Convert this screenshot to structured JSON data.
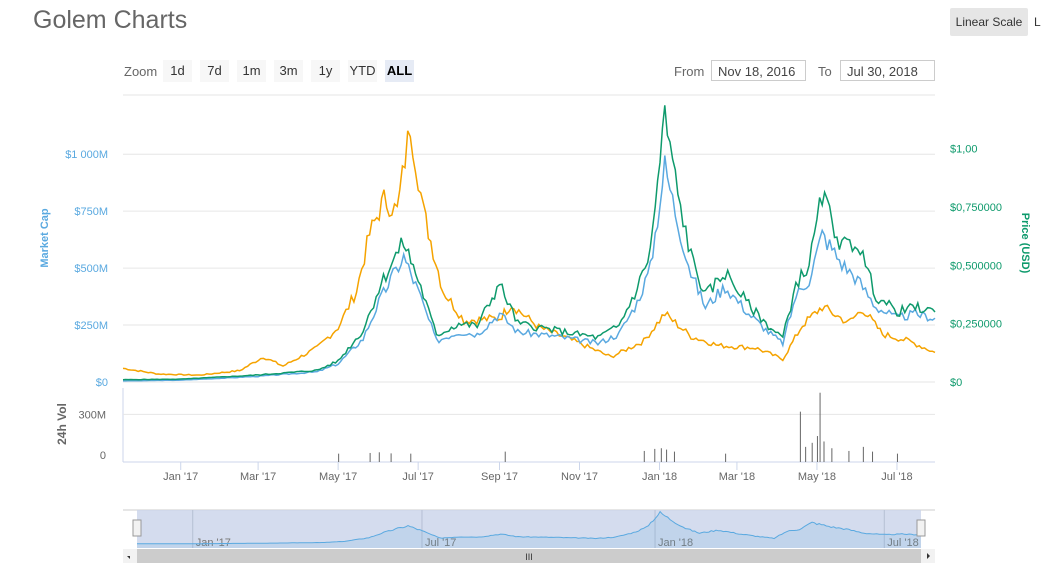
{
  "header": {
    "title": "Golem Charts",
    "scale_button": "Linear Scale",
    "scale_button_2": "L"
  },
  "range_selector": {
    "zoom_label": "Zoom",
    "buttons": [
      "1d",
      "7d",
      "1m",
      "3m",
      "1y",
      "YTD",
      "ALL"
    ],
    "selected": "ALL",
    "from_label": "From",
    "from_value": "Nov 18, 2016",
    "to_label": "To",
    "to_value": "Jul 30, 2018"
  },
  "colors": {
    "market_cap": "#5aa9e0",
    "price_usd": "#0e9a6c",
    "price_btc": "#f5a300",
    "volume": "#666666"
  },
  "chart_data": {
    "type": "line",
    "x_range": [
      "2016-11-18",
      "2018-07-30"
    ],
    "x_ticks": [
      "Jan '17",
      "Mar '17",
      "May '17",
      "Jul '17",
      "Sep '17",
      "Nov '17",
      "Jan '18",
      "Mar '18",
      "May '18",
      "Jul '18"
    ],
    "x_tick_dates": [
      "2017-01-01",
      "2017-03-01",
      "2017-05-01",
      "2017-07-01",
      "2017-09-01",
      "2017-11-01",
      "2018-01-01",
      "2018-03-01",
      "2018-05-01",
      "2018-07-01"
    ],
    "left_axis": {
      "label": "Market Cap",
      "ticks": [
        "$0",
        "$250M",
        "$500M",
        "$750M",
        "$1 000M"
      ],
      "tick_values": [
        0,
        250,
        500,
        750,
        1000
      ],
      "range": [
        0,
        1260
      ]
    },
    "right_axis": {
      "label": "Price (USD)",
      "ticks": [
        "$0",
        "$0,250000",
        "$0,500000",
        "$0,750000",
        "$1,00"
      ],
      "tick_values": [
        0,
        0.25,
        0.5,
        0.75,
        1.0
      ],
      "range": [
        0,
        1.23
      ]
    },
    "volume_axis": {
      "label": "24h Vol",
      "ticks": [
        "0",
        "300M"
      ],
      "tick_values": [
        0,
        300
      ],
      "range": [
        0,
        480
      ]
    },
    "navigator_ticks": [
      "Jan '17",
      "Jul '17",
      "Jan '18",
      "Jul '18"
    ],
    "navigator_tick_dates": [
      "2017-01-01",
      "2017-07-01",
      "2018-01-01",
      "2018-07-01"
    ],
    "market_cap": [
      [
        "2016-11-18",
        5
      ],
      [
        "2017-01-01",
        8
      ],
      [
        "2017-03-01",
        25
      ],
      [
        "2017-04-15",
        45
      ],
      [
        "2017-05-01",
        80
      ],
      [
        "2017-05-20",
        190
      ],
      [
        "2017-06-01",
        350
      ],
      [
        "2017-06-10",
        450
      ],
      [
        "2017-06-20",
        550
      ],
      [
        "2017-07-01",
        400
      ],
      [
        "2017-07-15",
        180
      ],
      [
        "2017-08-01",
        220
      ],
      [
        "2017-08-15",
        210
      ],
      [
        "2017-09-01",
        300
      ],
      [
        "2017-09-15",
        220
      ],
      [
        "2017-10-15",
        200
      ],
      [
        "2017-11-15",
        170
      ],
      [
        "2017-12-01",
        210
      ],
      [
        "2017-12-15",
        350
      ],
      [
        "2017-12-25",
        500
      ],
      [
        "2018-01-05",
        950
      ],
      [
        "2018-01-15",
        700
      ],
      [
        "2018-01-25",
        480
      ],
      [
        "2018-02-05",
        330
      ],
      [
        "2018-02-20",
        420
      ],
      [
        "2018-03-10",
        300
      ],
      [
        "2018-03-25",
        220
      ],
      [
        "2018-04-05",
        170
      ],
      [
        "2018-04-15",
        380
      ],
      [
        "2018-04-25",
        450
      ],
      [
        "2018-05-05",
        650
      ],
      [
        "2018-05-20",
        520
      ],
      [
        "2018-06-01",
        450
      ],
      [
        "2018-06-15",
        330
      ],
      [
        "2018-07-01",
        280
      ],
      [
        "2018-07-15",
        300
      ],
      [
        "2018-07-30",
        280
      ]
    ],
    "price_usd": [
      [
        "2016-11-18",
        0.01
      ],
      [
        "2017-01-01",
        0.012
      ],
      [
        "2017-03-01",
        0.03
      ],
      [
        "2017-04-15",
        0.05
      ],
      [
        "2017-05-01",
        0.09
      ],
      [
        "2017-05-20",
        0.22
      ],
      [
        "2017-06-01",
        0.4
      ],
      [
        "2017-06-10",
        0.5
      ],
      [
        "2017-06-20",
        0.6
      ],
      [
        "2017-07-01",
        0.44
      ],
      [
        "2017-07-15",
        0.2
      ],
      [
        "2017-08-01",
        0.25
      ],
      [
        "2017-08-15",
        0.24
      ],
      [
        "2017-09-01",
        0.42
      ],
      [
        "2017-09-15",
        0.25
      ],
      [
        "2017-10-15",
        0.22
      ],
      [
        "2017-11-15",
        0.19
      ],
      [
        "2017-12-01",
        0.24
      ],
      [
        "2017-12-15",
        0.4
      ],
      [
        "2017-12-25",
        0.56
      ],
      [
        "2018-01-05",
        1.14
      ],
      [
        "2018-01-15",
        0.8
      ],
      [
        "2018-01-25",
        0.54
      ],
      [
        "2018-02-05",
        0.37
      ],
      [
        "2018-02-20",
        0.47
      ],
      [
        "2018-03-10",
        0.33
      ],
      [
        "2018-03-25",
        0.24
      ],
      [
        "2018-04-05",
        0.19
      ],
      [
        "2018-04-15",
        0.42
      ],
      [
        "2018-04-25",
        0.5
      ],
      [
        "2018-05-05",
        0.8
      ],
      [
        "2018-05-20",
        0.58
      ],
      [
        "2018-06-01",
        0.6
      ],
      [
        "2018-06-15",
        0.37
      ],
      [
        "2018-07-01",
        0.3
      ],
      [
        "2018-07-15",
        0.32
      ],
      [
        "2018-07-30",
        0.3
      ]
    ],
    "price_btc_scaled": [
      [
        "2016-11-18",
        60
      ],
      [
        "2016-12-15",
        35
      ],
      [
        "2017-01-15",
        30
      ],
      [
        "2017-02-15",
        50
      ],
      [
        "2017-03-05",
        110
      ],
      [
        "2017-03-20",
        70
      ],
      [
        "2017-04-15",
        150
      ],
      [
        "2017-05-01",
        240
      ],
      [
        "2017-05-15",
        400
      ],
      [
        "2017-05-25",
        650
      ],
      [
        "2017-06-05",
        800
      ],
      [
        "2017-06-15",
        750
      ],
      [
        "2017-06-25",
        1130
      ],
      [
        "2017-07-05",
        750
      ],
      [
        "2017-07-20",
        400
      ],
      [
        "2017-08-05",
        270
      ],
      [
        "2017-09-01",
        280
      ],
      [
        "2017-09-10",
        340
      ],
      [
        "2017-10-01",
        240
      ],
      [
        "2017-11-01",
        170
      ],
      [
        "2017-11-25",
        110
      ],
      [
        "2017-12-20",
        180
      ],
      [
        "2018-01-05",
        300
      ],
      [
        "2018-01-25",
        200
      ],
      [
        "2018-02-15",
        160
      ],
      [
        "2018-03-15",
        150
      ],
      [
        "2018-04-05",
        100
      ],
      [
        "2018-04-20",
        250
      ],
      [
        "2018-05-05",
        330
      ],
      [
        "2018-05-25",
        260
      ],
      [
        "2018-06-05",
        320
      ],
      [
        "2018-06-20",
        210
      ],
      [
        "2018-07-10",
        180
      ],
      [
        "2018-07-30",
        130
      ]
    ],
    "volume": [
      [
        "2017-05-01",
        10
      ],
      [
        "2017-05-25",
        15
      ],
      [
        "2017-06-01",
        20
      ],
      [
        "2017-06-10",
        12
      ],
      [
        "2017-06-25",
        10
      ],
      [
        "2017-09-05",
        25
      ],
      [
        "2017-12-20",
        30
      ],
      [
        "2017-12-28",
        45
      ],
      [
        "2018-01-02",
        50
      ],
      [
        "2018-01-06",
        40
      ],
      [
        "2018-01-12",
        25
      ],
      [
        "2018-02-20",
        10
      ],
      [
        "2018-04-18",
        320
      ],
      [
        "2018-04-22",
        60
      ],
      [
        "2018-04-27",
        90
      ],
      [
        "2018-05-01",
        140
      ],
      [
        "2018-05-03",
        460
      ],
      [
        "2018-05-06",
        100
      ],
      [
        "2018-05-12",
        50
      ],
      [
        "2018-05-25",
        30
      ],
      [
        "2018-06-05",
        60
      ],
      [
        "2018-06-12",
        25
      ],
      [
        "2018-07-01",
        10
      ]
    ]
  }
}
